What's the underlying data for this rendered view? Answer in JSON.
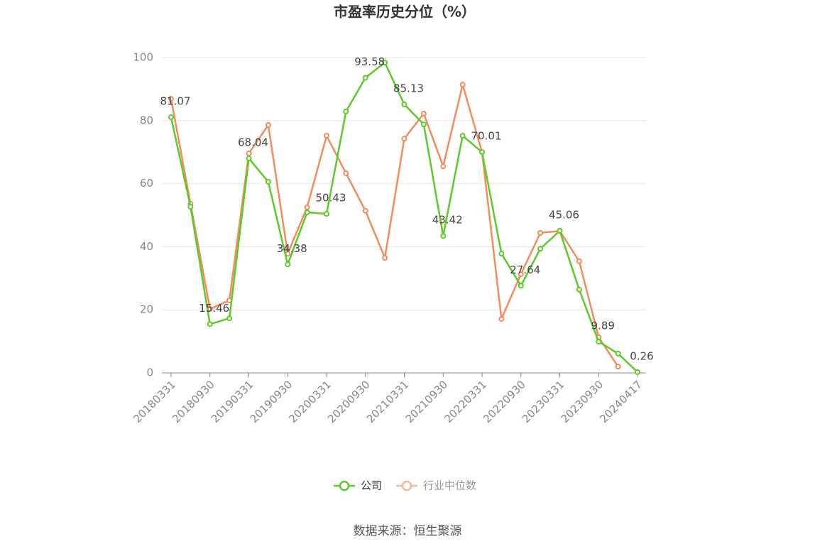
{
  "chart_data": {
    "type": "line",
    "title": "市盈率历史分位（%）",
    "categories": [
      "20180331",
      null,
      "20180930",
      null,
      "20190331",
      null,
      "20190930",
      null,
      "20200331",
      null,
      "20200930",
      null,
      "20210331",
      null,
      "20210930",
      null,
      "20220331",
      null,
      "20220930",
      null,
      "20230331",
      null,
      "20230930",
      null,
      "20240417"
    ],
    "series": [
      {
        "name": "公司",
        "color": "#5ec92b",
        "values": [
          81.07,
          52.7,
          15.46,
          17.3,
          68.04,
          60.6,
          34.38,
          50.9,
          50.43,
          82.9,
          93.58,
          98.4,
          85.13,
          78.8,
          43.42,
          75.2,
          70.01,
          37.8,
          27.64,
          39.4,
          45.06,
          26.4,
          9.89,
          6.1,
          0.26
        ],
        "value_labels": [
          "81.07",
          null,
          "15.46",
          null,
          "68.04",
          null,
          "34.38",
          null,
          "50.43",
          null,
          "93.58",
          null,
          "85.13",
          null,
          "43.42",
          null,
          "70.01",
          null,
          "27.64",
          null,
          "45.06",
          null,
          "9.89",
          null,
          "0.26"
        ]
      },
      {
        "name": "行业中位数",
        "color": "#f28c5a",
        "values": [
          86.9,
          53.6,
          20.3,
          23.0,
          69.6,
          78.6,
          37.8,
          52.5,
          75.2,
          63.3,
          51.4,
          36.5,
          74.3,
          82.2,
          65.5,
          91.4,
          70.0,
          17.1,
          31.3,
          44.4,
          45.0,
          35.4,
          11.3,
          2.0,
          null
        ]
      }
    ],
    "ylim": [
      0,
      100
    ],
    "yticks": [
      0,
      20,
      40,
      60,
      80,
      100
    ],
    "grid": true,
    "source": "数据来源：恒生聚源"
  }
}
